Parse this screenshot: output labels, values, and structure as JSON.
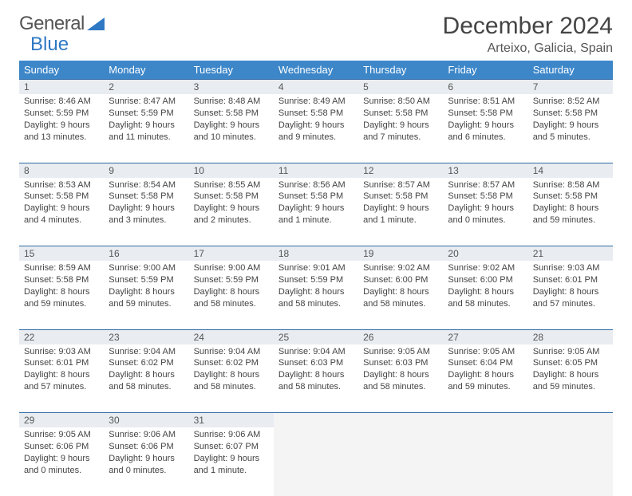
{
  "logo": {
    "text1": "General",
    "text2": "Blue"
  },
  "title": "December 2024",
  "location": "Arteixo, Galicia, Spain",
  "header_bg": "#3d87c9",
  "daynum_bg": "#e9edf1",
  "border_color": "#2f6aa3",
  "weekdays": [
    "Sunday",
    "Monday",
    "Tuesday",
    "Wednesday",
    "Thursday",
    "Friday",
    "Saturday"
  ],
  "weeks": [
    [
      {
        "n": "1",
        "sr": "8:46 AM",
        "ss": "5:59 PM",
        "d": "9 hours and 13 minutes."
      },
      {
        "n": "2",
        "sr": "8:47 AM",
        "ss": "5:59 PM",
        "d": "9 hours and 11 minutes."
      },
      {
        "n": "3",
        "sr": "8:48 AM",
        "ss": "5:58 PM",
        "d": "9 hours and 10 minutes."
      },
      {
        "n": "4",
        "sr": "8:49 AM",
        "ss": "5:58 PM",
        "d": "9 hours and 9 minutes."
      },
      {
        "n": "5",
        "sr": "8:50 AM",
        "ss": "5:58 PM",
        "d": "9 hours and 7 minutes."
      },
      {
        "n": "6",
        "sr": "8:51 AM",
        "ss": "5:58 PM",
        "d": "9 hours and 6 minutes."
      },
      {
        "n": "7",
        "sr": "8:52 AM",
        "ss": "5:58 PM",
        "d": "9 hours and 5 minutes."
      }
    ],
    [
      {
        "n": "8",
        "sr": "8:53 AM",
        "ss": "5:58 PM",
        "d": "9 hours and 4 minutes."
      },
      {
        "n": "9",
        "sr": "8:54 AM",
        "ss": "5:58 PM",
        "d": "9 hours and 3 minutes."
      },
      {
        "n": "10",
        "sr": "8:55 AM",
        "ss": "5:58 PM",
        "d": "9 hours and 2 minutes."
      },
      {
        "n": "11",
        "sr": "8:56 AM",
        "ss": "5:58 PM",
        "d": "9 hours and 1 minute."
      },
      {
        "n": "12",
        "sr": "8:57 AM",
        "ss": "5:58 PM",
        "d": "9 hours and 1 minute."
      },
      {
        "n": "13",
        "sr": "8:57 AM",
        "ss": "5:58 PM",
        "d": "9 hours and 0 minutes."
      },
      {
        "n": "14",
        "sr": "8:58 AM",
        "ss": "5:58 PM",
        "d": "8 hours and 59 minutes."
      }
    ],
    [
      {
        "n": "15",
        "sr": "8:59 AM",
        "ss": "5:58 PM",
        "d": "8 hours and 59 minutes."
      },
      {
        "n": "16",
        "sr": "9:00 AM",
        "ss": "5:59 PM",
        "d": "8 hours and 59 minutes."
      },
      {
        "n": "17",
        "sr": "9:00 AM",
        "ss": "5:59 PM",
        "d": "8 hours and 58 minutes."
      },
      {
        "n": "18",
        "sr": "9:01 AM",
        "ss": "5:59 PM",
        "d": "8 hours and 58 minutes."
      },
      {
        "n": "19",
        "sr": "9:02 AM",
        "ss": "6:00 PM",
        "d": "8 hours and 58 minutes."
      },
      {
        "n": "20",
        "sr": "9:02 AM",
        "ss": "6:00 PM",
        "d": "8 hours and 58 minutes."
      },
      {
        "n": "21",
        "sr": "9:03 AM",
        "ss": "6:01 PM",
        "d": "8 hours and 57 minutes."
      }
    ],
    [
      {
        "n": "22",
        "sr": "9:03 AM",
        "ss": "6:01 PM",
        "d": "8 hours and 57 minutes."
      },
      {
        "n": "23",
        "sr": "9:04 AM",
        "ss": "6:02 PM",
        "d": "8 hours and 58 minutes."
      },
      {
        "n": "24",
        "sr": "9:04 AM",
        "ss": "6:02 PM",
        "d": "8 hours and 58 minutes."
      },
      {
        "n": "25",
        "sr": "9:04 AM",
        "ss": "6:03 PM",
        "d": "8 hours and 58 minutes."
      },
      {
        "n": "26",
        "sr": "9:05 AM",
        "ss": "6:03 PM",
        "d": "8 hours and 58 minutes."
      },
      {
        "n": "27",
        "sr": "9:05 AM",
        "ss": "6:04 PM",
        "d": "8 hours and 59 minutes."
      },
      {
        "n": "28",
        "sr": "9:05 AM",
        "ss": "6:05 PM",
        "d": "8 hours and 59 minutes."
      }
    ],
    [
      {
        "n": "29",
        "sr": "9:05 AM",
        "ss": "6:06 PM",
        "d": "9 hours and 0 minutes."
      },
      {
        "n": "30",
        "sr": "9:06 AM",
        "ss": "6:06 PM",
        "d": "9 hours and 0 minutes."
      },
      {
        "n": "31",
        "sr": "9:06 AM",
        "ss": "6:07 PM",
        "d": "9 hours and 1 minute."
      },
      null,
      null,
      null,
      null
    ]
  ],
  "labels": {
    "sunrise": "Sunrise:",
    "sunset": "Sunset:",
    "daylight": "Daylight:"
  }
}
